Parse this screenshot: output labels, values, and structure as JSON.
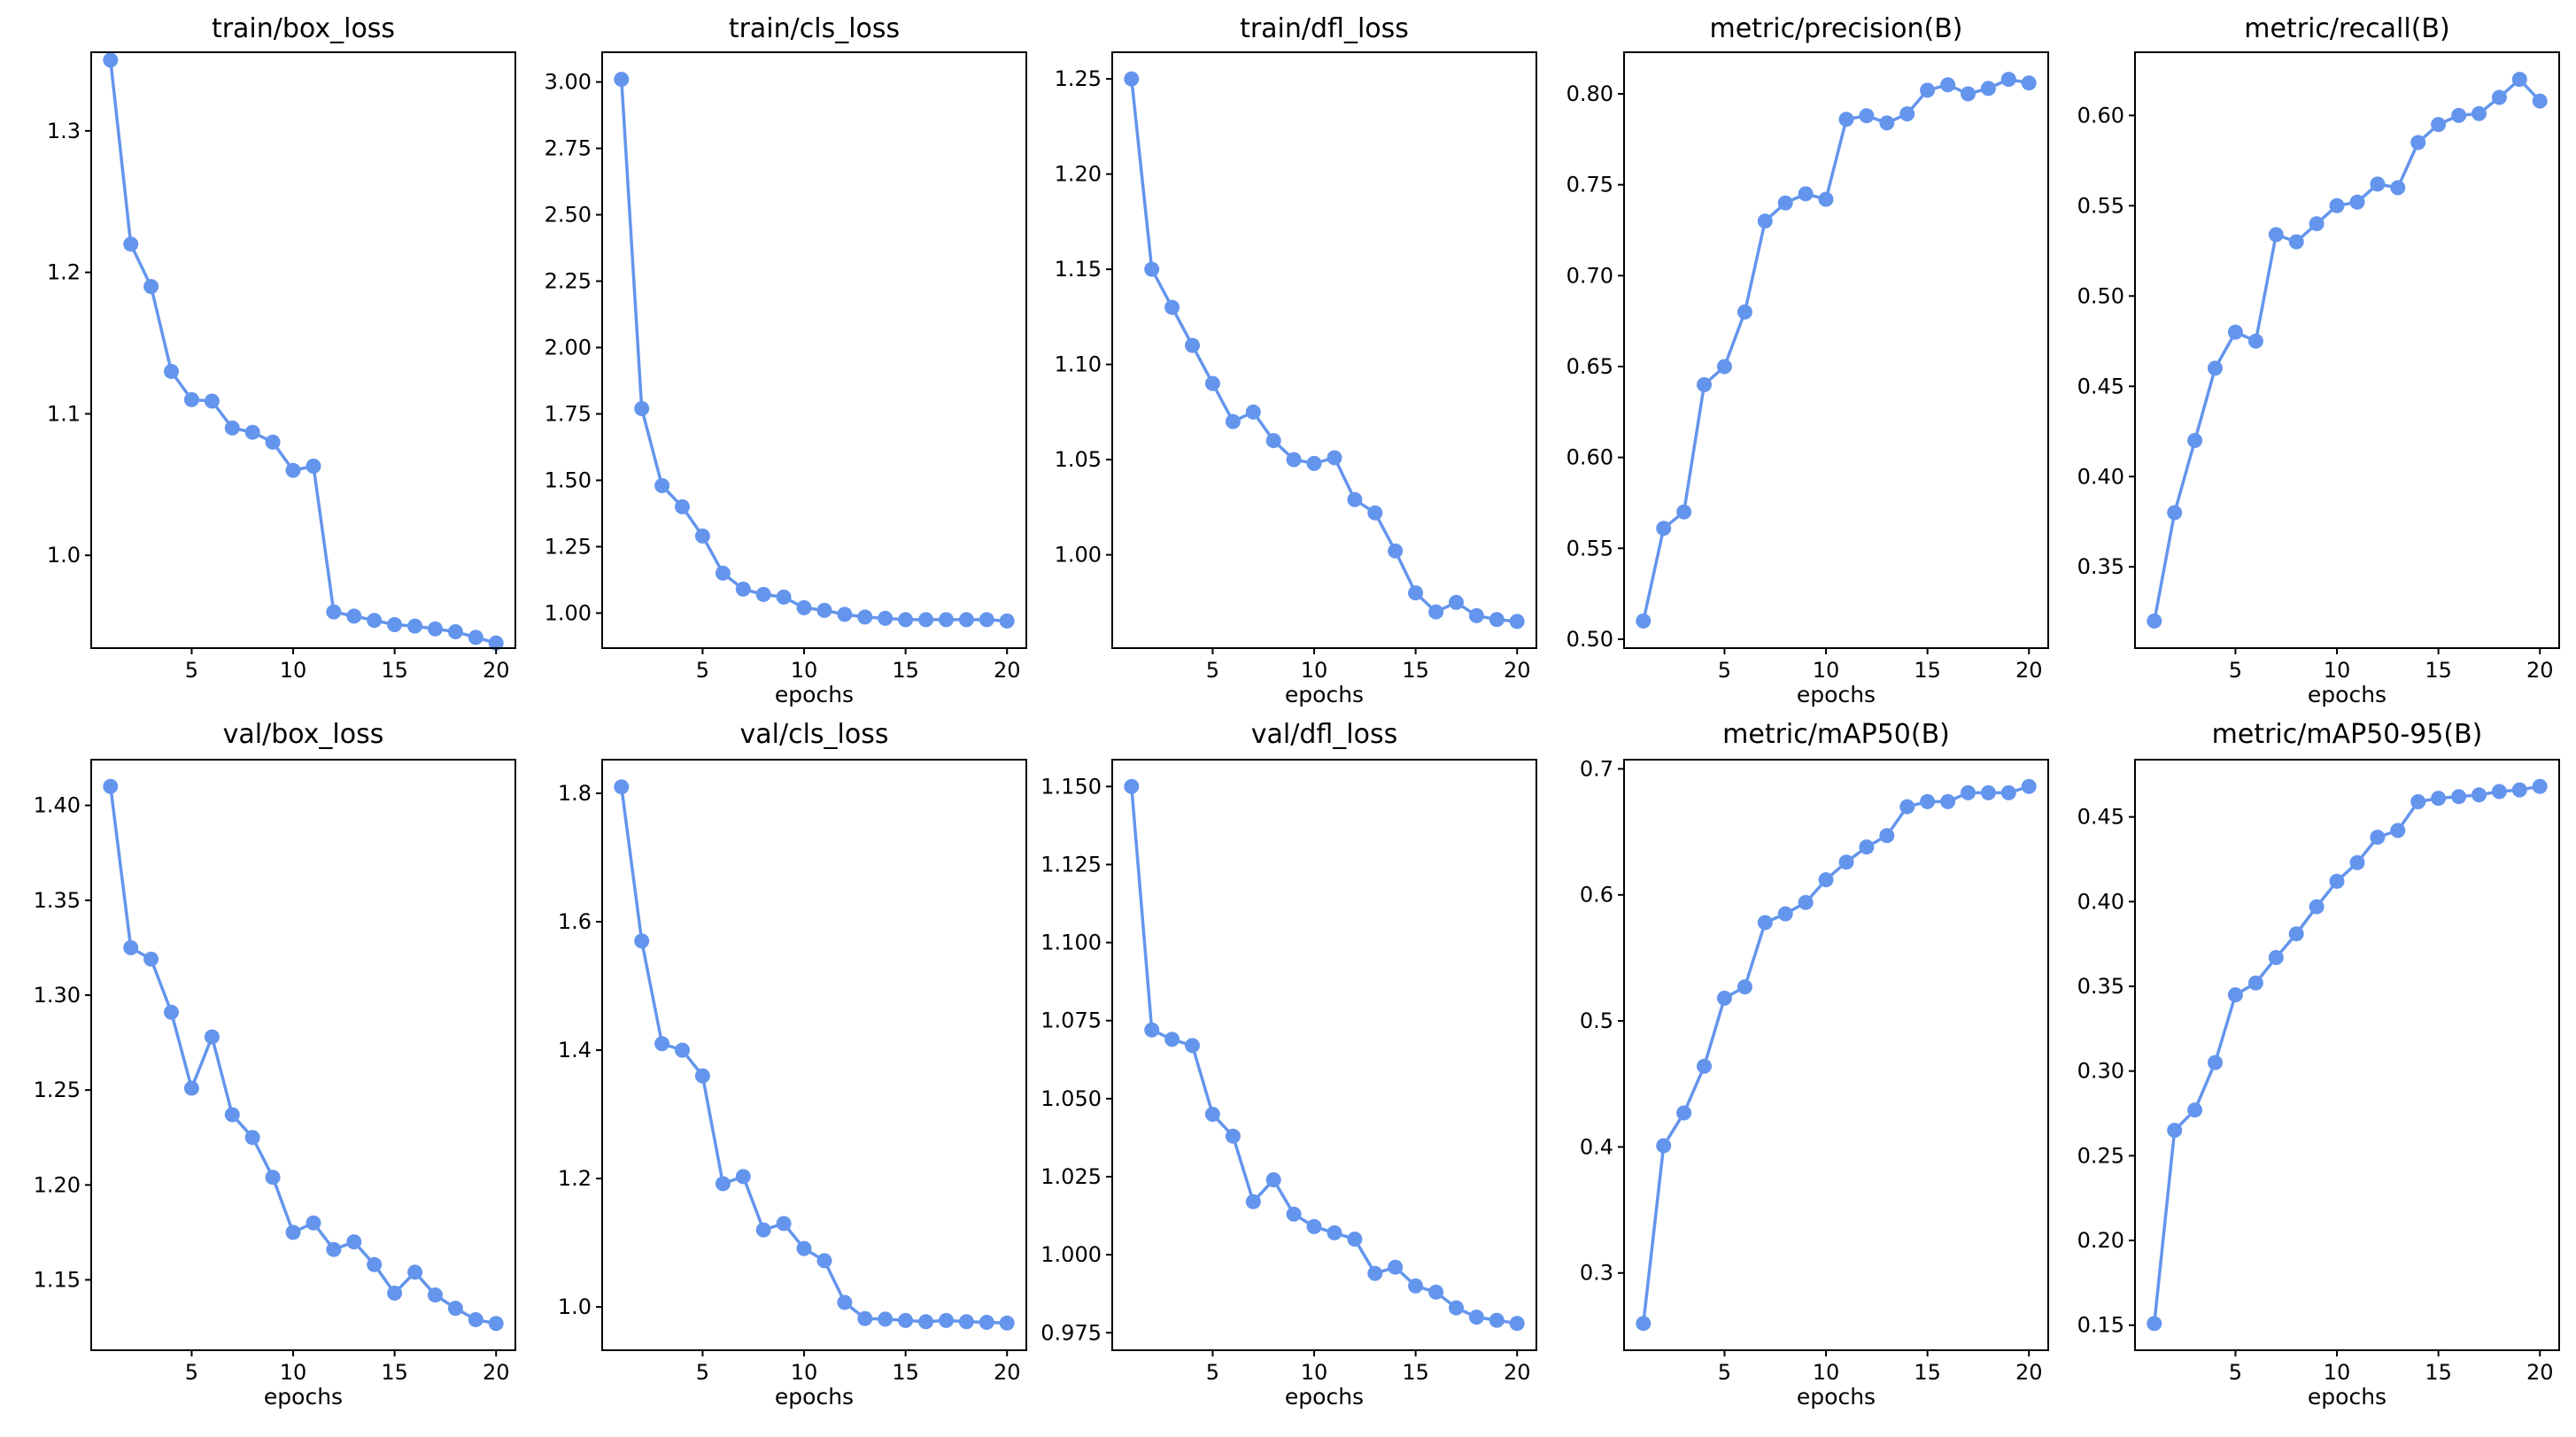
{
  "figure": {
    "series_color": "#6495ed",
    "marker": "circle"
  },
  "chart_data": [
    {
      "type": "line",
      "title": "train/box_loss",
      "xlabel": "",
      "x": [
        1,
        2,
        3,
        4,
        5,
        6,
        7,
        8,
        9,
        10,
        11,
        12,
        13,
        14,
        15,
        16,
        17,
        18,
        19,
        20
      ],
      "values": [
        1.35,
        1.22,
        1.19,
        1.13,
        1.11,
        1.109,
        1.09,
        1.087,
        1.08,
        1.06,
        1.063,
        0.96,
        0.957,
        0.954,
        0.951,
        0.95,
        0.948,
        0.946,
        0.942,
        0.938
      ],
      "xlim": [
        0.05,
        20.95
      ],
      "ylim": [
        0.9344,
        1.3556
      ],
      "xticks": [
        5,
        10,
        15,
        20
      ],
      "yticks": [
        1.0,
        1.1,
        1.2,
        1.3
      ],
      "ytick_labels": [
        "1.0",
        "1.1",
        "1.2",
        "1.3"
      ],
      "grid": false,
      "legend": "none"
    },
    {
      "type": "line",
      "title": "train/cls_loss",
      "xlabel": "epochs",
      "x": [
        1,
        2,
        3,
        4,
        5,
        6,
        7,
        8,
        9,
        10,
        11,
        12,
        13,
        14,
        15,
        16,
        17,
        18,
        19,
        20
      ],
      "values": [
        3.01,
        1.77,
        1.48,
        1.4,
        1.29,
        1.15,
        1.09,
        1.07,
        1.06,
        1.02,
        1.01,
        0.995,
        0.985,
        0.98,
        0.975,
        0.975,
        0.975,
        0.975,
        0.975,
        0.97
      ],
      "xlim": [
        0.05,
        20.95
      ],
      "ylim": [
        0.868,
        3.112
      ],
      "xticks": [
        5,
        10,
        15,
        20
      ],
      "yticks": [
        1.0,
        1.25,
        1.5,
        1.75,
        2.0,
        2.25,
        2.5,
        2.75,
        3.0
      ],
      "ytick_labels": [
        "1.00",
        "1.25",
        "1.50",
        "1.75",
        "2.00",
        "2.25",
        "2.50",
        "2.75",
        "3.00"
      ],
      "grid": false,
      "legend": "none"
    },
    {
      "type": "line",
      "title": "train/dfl_loss",
      "xlabel": "epochs",
      "x": [
        1,
        2,
        3,
        4,
        5,
        6,
        7,
        8,
        9,
        10,
        11,
        12,
        13,
        14,
        15,
        16,
        17,
        18,
        19,
        20
      ],
      "values": [
        1.25,
        1.15,
        1.13,
        1.11,
        1.09,
        1.07,
        1.075,
        1.06,
        1.05,
        1.048,
        1.051,
        1.029,
        1.022,
        1.002,
        0.98,
        0.97,
        0.975,
        0.968,
        0.966,
        0.965
      ],
      "xlim": [
        0.05,
        20.95
      ],
      "ylim": [
        0.951,
        1.264
      ],
      "xticks": [
        5,
        10,
        15,
        20
      ],
      "yticks": [
        1.0,
        1.05,
        1.1,
        1.15,
        1.2,
        1.25
      ],
      "ytick_labels": [
        "1.00",
        "1.05",
        "1.10",
        "1.15",
        "1.20",
        "1.25"
      ],
      "grid": false,
      "legend": "none"
    },
    {
      "type": "line",
      "title": "metric/precision(B)",
      "xlabel": "epochs",
      "x": [
        1,
        2,
        3,
        4,
        5,
        6,
        7,
        8,
        9,
        10,
        11,
        12,
        13,
        14,
        15,
        16,
        17,
        18,
        19,
        20
      ],
      "values": [
        0.51,
        0.561,
        0.57,
        0.64,
        0.65,
        0.68,
        0.73,
        0.74,
        0.745,
        0.742,
        0.786,
        0.788,
        0.784,
        0.789,
        0.802,
        0.805,
        0.8,
        0.803,
        0.808,
        0.806
      ],
      "xlim": [
        0.05,
        20.95
      ],
      "ylim": [
        0.4951,
        0.8229
      ],
      "xticks": [
        5,
        10,
        15,
        20
      ],
      "yticks": [
        0.5,
        0.55,
        0.6,
        0.65,
        0.7,
        0.75,
        0.8
      ],
      "ytick_labels": [
        "0.50",
        "0.55",
        "0.60",
        "0.65",
        "0.70",
        "0.75",
        "0.80"
      ],
      "grid": false,
      "legend": "none"
    },
    {
      "type": "line",
      "title": "metric/recall(B)",
      "xlabel": "epochs",
      "x": [
        1,
        2,
        3,
        4,
        5,
        6,
        7,
        8,
        9,
        10,
        11,
        12,
        13,
        14,
        15,
        16,
        17,
        18,
        19,
        20
      ],
      "values": [
        0.32,
        0.38,
        0.42,
        0.46,
        0.48,
        0.475,
        0.534,
        0.53,
        0.54,
        0.55,
        0.552,
        0.562,
        0.56,
        0.585,
        0.595,
        0.6,
        0.601,
        0.61,
        0.62,
        0.608
      ],
      "xlim": [
        0.05,
        20.95
      ],
      "ylim": [
        0.305,
        0.635
      ],
      "xticks": [
        5,
        10,
        15,
        20
      ],
      "yticks": [
        0.35,
        0.4,
        0.45,
        0.5,
        0.55,
        0.6
      ],
      "ytick_labels": [
        "0.35",
        "0.40",
        "0.45",
        "0.50",
        "0.55",
        "0.60"
      ],
      "grid": false,
      "legend": "none"
    },
    {
      "type": "line",
      "title": "val/box_loss",
      "xlabel": "epochs",
      "x": [
        1,
        2,
        3,
        4,
        5,
        6,
        7,
        8,
        9,
        10,
        11,
        12,
        13,
        14,
        15,
        16,
        17,
        18,
        19,
        20
      ],
      "values": [
        1.41,
        1.325,
        1.319,
        1.291,
        1.251,
        1.278,
        1.237,
        1.225,
        1.204,
        1.175,
        1.18,
        1.166,
        1.17,
        1.158,
        1.143,
        1.154,
        1.142,
        1.135,
        1.129,
        1.127
      ],
      "xlim": [
        0.05,
        20.95
      ],
      "ylim": [
        1.1129,
        1.4241
      ],
      "xticks": [
        5,
        10,
        15,
        20
      ],
      "yticks": [
        1.15,
        1.2,
        1.25,
        1.3,
        1.35,
        1.4
      ],
      "ytick_labels": [
        "1.15",
        "1.20",
        "1.25",
        "1.30",
        "1.35",
        "1.40"
      ],
      "grid": false,
      "legend": "none"
    },
    {
      "type": "line",
      "title": "val/cls_loss",
      "xlabel": "epochs",
      "x": [
        1,
        2,
        3,
        4,
        5,
        6,
        7,
        8,
        9,
        10,
        11,
        12,
        13,
        14,
        15,
        16,
        17,
        18,
        19,
        20
      ],
      "values": [
        1.81,
        1.57,
        1.41,
        1.4,
        1.36,
        1.192,
        1.203,
        1.12,
        1.13,
        1.091,
        1.072,
        1.007,
        0.982,
        0.981,
        0.979,
        0.977,
        0.979,
        0.977,
        0.976,
        0.975
      ],
      "xlim": [
        0.05,
        20.95
      ],
      "ylim": [
        0.9326,
        1.8524
      ],
      "xticks": [
        5,
        10,
        15,
        20
      ],
      "yticks": [
        1.0,
        1.2,
        1.4,
        1.6,
        1.8
      ],
      "ytick_labels": [
        "1.0",
        "1.2",
        "1.4",
        "1.6",
        "1.8"
      ],
      "grid": false,
      "legend": "none"
    },
    {
      "type": "line",
      "title": "val/dfl_loss",
      "xlabel": "epochs",
      "x": [
        1,
        2,
        3,
        4,
        5,
        6,
        7,
        8,
        9,
        10,
        11,
        12,
        13,
        14,
        15,
        16,
        17,
        18,
        19,
        20
      ],
      "values": [
        1.15,
        1.072,
        1.069,
        1.067,
        1.045,
        1.038,
        1.017,
        1.024,
        1.013,
        1.009,
        1.007,
        1.005,
        0.994,
        0.996,
        0.99,
        0.988,
        0.983,
        0.98,
        0.979,
        0.978
      ],
      "xlim": [
        0.05,
        20.95
      ],
      "ylim": [
        0.9694,
        1.1586
      ],
      "xticks": [
        5,
        10,
        15,
        20
      ],
      "yticks": [
        0.975,
        1.0,
        1.025,
        1.05,
        1.075,
        1.1,
        1.125,
        1.15
      ],
      "ytick_labels": [
        "0.975",
        "1.000",
        "1.025",
        "1.050",
        "1.075",
        "1.100",
        "1.125",
        "1.150"
      ],
      "grid": false,
      "legend": "none"
    },
    {
      "type": "line",
      "title": "metric/mAP50(B)",
      "xlabel": "epochs",
      "x": [
        1,
        2,
        3,
        4,
        5,
        6,
        7,
        8,
        9,
        10,
        11,
        12,
        13,
        14,
        15,
        16,
        17,
        18,
        19,
        20
      ],
      "values": [
        0.26,
        0.401,
        0.427,
        0.464,
        0.518,
        0.527,
        0.578,
        0.585,
        0.594,
        0.612,
        0.626,
        0.638,
        0.647,
        0.67,
        0.674,
        0.674,
        0.681,
        0.681,
        0.681,
        0.686
      ],
      "xlim": [
        0.05,
        20.95
      ],
      "ylim": [
        0.2387,
        0.7073
      ],
      "xticks": [
        5,
        10,
        15,
        20
      ],
      "yticks": [
        0.3,
        0.4,
        0.5,
        0.6,
        0.7
      ],
      "ytick_labels": [
        "0.3",
        "0.4",
        "0.5",
        "0.6",
        "0.7"
      ],
      "grid": false,
      "legend": "none"
    },
    {
      "type": "line",
      "title": "metric/mAP50-95(B)",
      "xlabel": "epochs",
      "x": [
        1,
        2,
        3,
        4,
        5,
        6,
        7,
        8,
        9,
        10,
        11,
        12,
        13,
        14,
        15,
        16,
        17,
        18,
        19,
        20
      ],
      "values": [
        0.151,
        0.265,
        0.277,
        0.305,
        0.345,
        0.352,
        0.367,
        0.381,
        0.397,
        0.412,
        0.423,
        0.438,
        0.442,
        0.459,
        0.461,
        0.462,
        0.463,
        0.465,
        0.466,
        0.468
      ],
      "xlim": [
        0.05,
        20.95
      ],
      "ylim": [
        0.1352,
        0.4838
      ],
      "xticks": [
        5,
        10,
        15,
        20
      ],
      "yticks": [
        0.15,
        0.2,
        0.25,
        0.3,
        0.35,
        0.4,
        0.45
      ],
      "ytick_labels": [
        "0.15",
        "0.20",
        "0.25",
        "0.30",
        "0.35",
        "0.40",
        "0.45"
      ],
      "grid": false,
      "legend": "none"
    }
  ]
}
